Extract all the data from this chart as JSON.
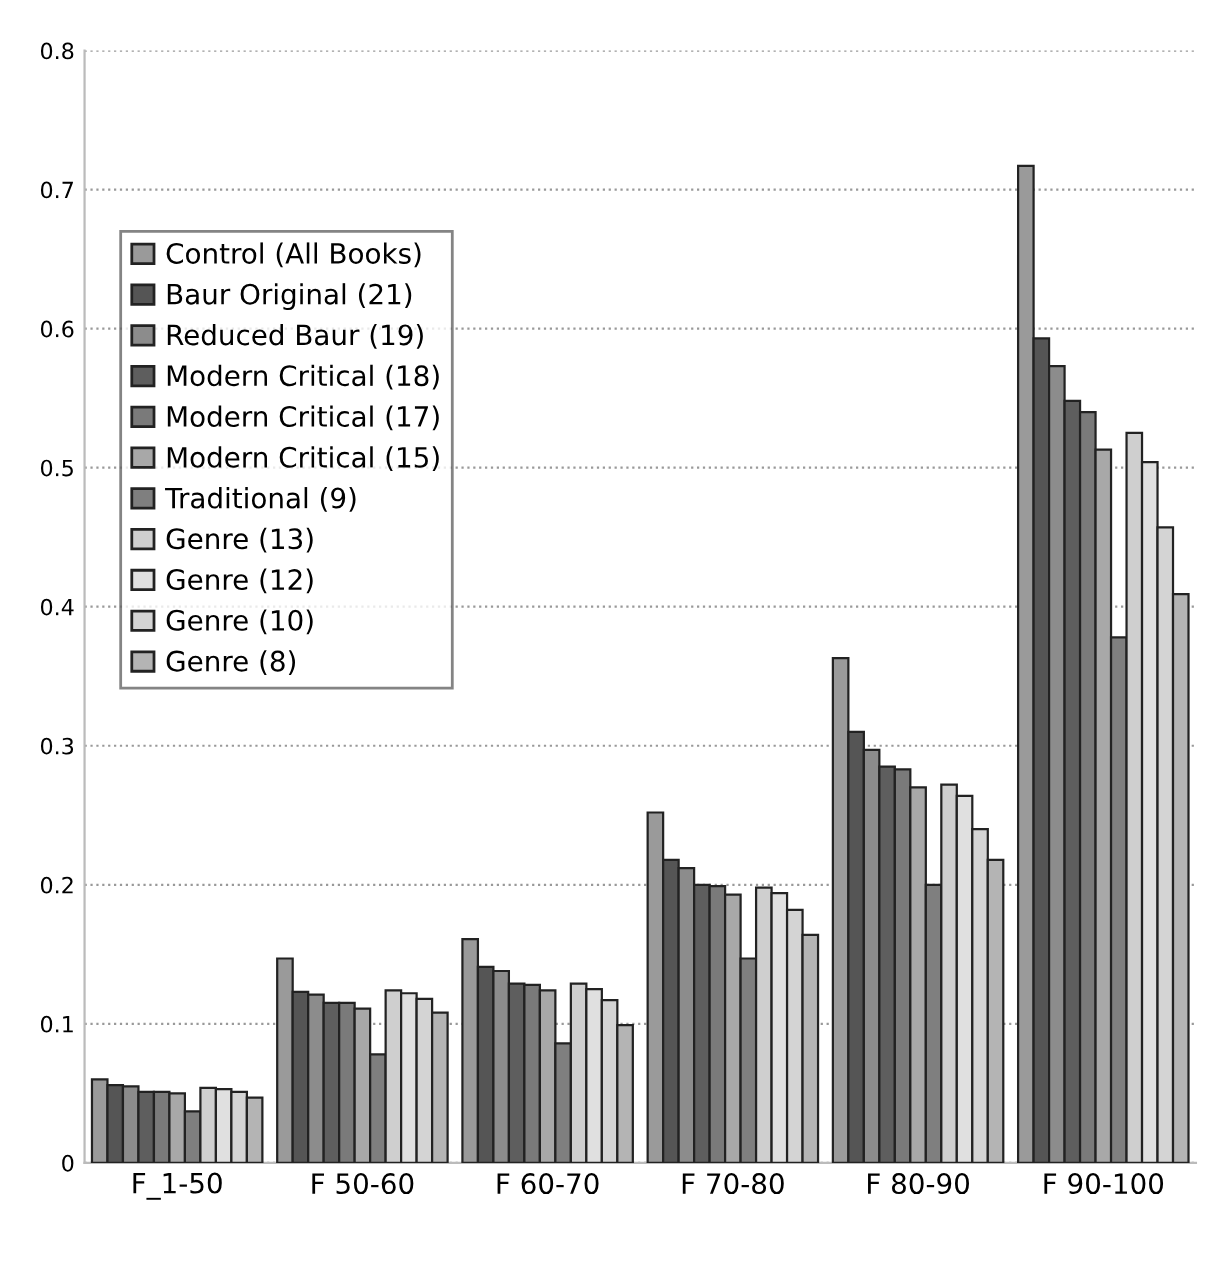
{
  "chart_data": {
    "type": "bar",
    "categories": [
      "F_1-50",
      "F 50-60",
      "F 60-70",
      "F 70-80",
      "F 80-90",
      "F 90-100"
    ],
    "series": [
      {
        "name": "Control (All Books)",
        "color": "#9a9a9a",
        "values": [
          0.06,
          0.147,
          0.161,
          0.252,
          0.363,
          0.717
        ]
      },
      {
        "name": "Baur Original (21)",
        "color": "#555555",
        "values": [
          0.056,
          0.123,
          0.141,
          0.218,
          0.31,
          0.593
        ]
      },
      {
        "name": "Reduced Baur (19)",
        "color": "#8c8c8c",
        "values": [
          0.055,
          0.121,
          0.138,
          0.212,
          0.297,
          0.573
        ]
      },
      {
        "name": "Modern Critical (18)",
        "color": "#5e5e5e",
        "values": [
          0.051,
          0.115,
          0.129,
          0.2,
          0.285,
          0.548
        ]
      },
      {
        "name": "Modern Critical (17)",
        "color": "#7a7a7a",
        "values": [
          0.051,
          0.115,
          0.128,
          0.199,
          0.283,
          0.54
        ]
      },
      {
        "name": "Modern Critical (15)",
        "color": "#a8a8a8",
        "values": [
          0.05,
          0.111,
          0.124,
          0.193,
          0.27,
          0.513
        ]
      },
      {
        "name": "Traditional (9)",
        "color": "#7f7f7f",
        "values": [
          0.037,
          0.078,
          0.086,
          0.147,
          0.2,
          0.378
        ]
      },
      {
        "name": "Genre (13)",
        "color": "#cfcfcf",
        "values": [
          0.054,
          0.124,
          0.129,
          0.198,
          0.272,
          0.525
        ]
      },
      {
        "name": "Genre (12)",
        "color": "#e0e0e0",
        "values": [
          0.053,
          0.122,
          0.125,
          0.194,
          0.264,
          0.504
        ]
      },
      {
        "name": "Genre (10)",
        "color": "#d4d4d4",
        "values": [
          0.051,
          0.118,
          0.117,
          0.182,
          0.24,
          0.457
        ]
      },
      {
        "name": "Genre (8)",
        "color": "#b4b4b4",
        "values": [
          0.047,
          0.108,
          0.099,
          0.164,
          0.218,
          0.409
        ]
      }
    ],
    "ylim": [
      0,
      0.8
    ],
    "yticks": [
      0,
      0.1,
      0.2,
      0.3,
      0.4,
      0.5,
      0.6,
      0.7,
      0.8
    ],
    "grid": "y",
    "legend": "top left"
  }
}
